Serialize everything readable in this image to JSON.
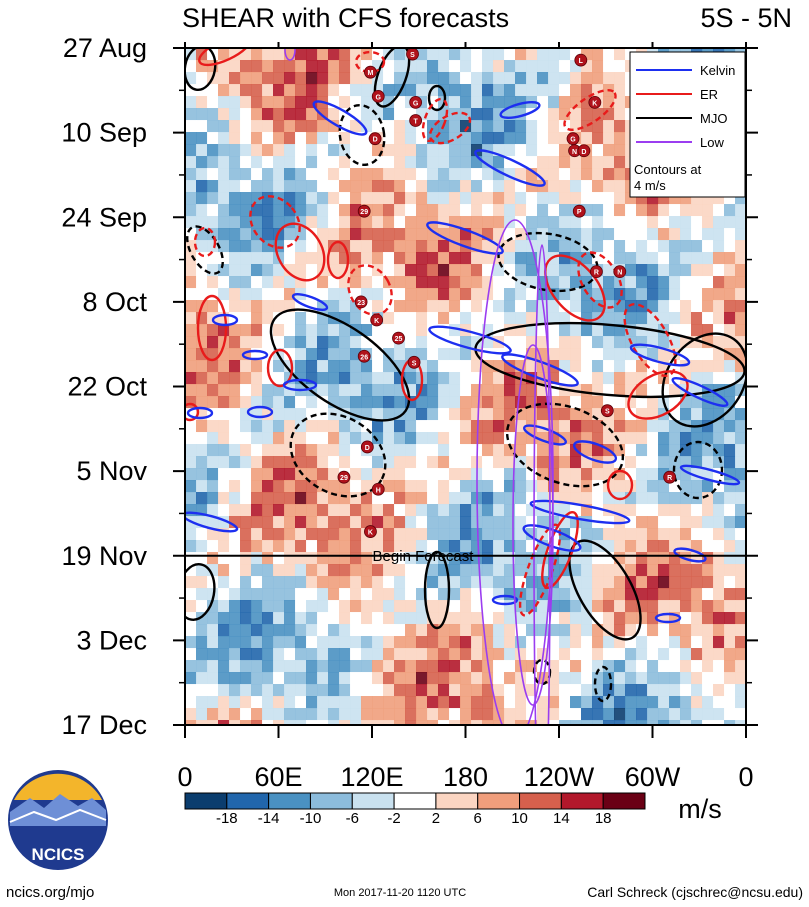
{
  "chart_data": {
    "type": "heatmap",
    "title": "SHEAR with CFS forecasts",
    "region": "5S - 5N",
    "x_ticks": [
      "0",
      "60E",
      "120E",
      "180",
      "120W",
      "60W",
      "0"
    ],
    "x_range": [
      0,
      360
    ],
    "y_ticks": [
      "27 Aug",
      "10 Sep",
      "24 Sep",
      "8 Oct",
      "22 Oct",
      "5 Nov",
      "19 Nov",
      "3 Dec",
      "17 Dec"
    ],
    "y_range_days": [
      0,
      112
    ],
    "forecast_start": "19 Nov",
    "forecast_label": "Begin Forecast",
    "colorbar": {
      "levels": [
        "-18",
        "-14",
        "-10",
        "-6",
        "-2",
        "2",
        "6",
        "10",
        "14",
        "18"
      ],
      "colors": [
        "#0b3d6e",
        "#2166ac",
        "#4a91c2",
        "#8cbcdc",
        "#c9e1ef",
        "#ffffff",
        "#fbd5c2",
        "#f09e7c",
        "#d6604d",
        "#b2182b",
        "#6a0015"
      ],
      "unit": "m/s"
    },
    "legend": [
      {
        "label": "Kelvin",
        "color": "#1d2ff0"
      },
      {
        "label": "ER",
        "color": "#e81b1b"
      },
      {
        "label": "MJO",
        "color": "#000000"
      },
      {
        "label": "Low",
        "color": "#9b3df0"
      }
    ],
    "legend_note": [
      "Contours at",
      "4 m/s"
    ],
    "storm_markers": [
      {
        "label": "G",
        "lon": 148,
        "day": 9
      },
      {
        "label": "M",
        "lon": 119,
        "day": 4
      },
      {
        "label": "S",
        "lon": 146,
        "day": 1
      },
      {
        "label": "G",
        "lon": 124,
        "day": 8
      },
      {
        "label": "T",
        "lon": 148,
        "day": 12
      },
      {
        "label": "D",
        "lon": 122,
        "day": 15
      },
      {
        "label": "L",
        "lon": 254,
        "day": 2
      },
      {
        "label": "K",
        "lon": 263,
        "day": 9
      },
      {
        "label": "G",
        "lon": 249,
        "day": 15
      },
      {
        "label": "N",
        "lon": 250,
        "day": 17
      },
      {
        "label": "D",
        "lon": 256,
        "day": 17
      },
      {
        "label": "P",
        "lon": 253,
        "day": 27
      },
      {
        "label": "29",
        "lon": 115,
        "day": 27
      },
      {
        "label": "R",
        "lon": 264,
        "day": 37
      },
      {
        "label": "N",
        "lon": 279,
        "day": 37
      },
      {
        "label": "23",
        "lon": 113,
        "day": 42
      },
      {
        "label": "K",
        "lon": 123,
        "day": 45
      },
      {
        "label": "25",
        "lon": 137,
        "day": 48
      },
      {
        "label": "26",
        "lon": 115,
        "day": 51
      },
      {
        "label": "S",
        "lon": 147,
        "day": 52
      },
      {
        "label": "S",
        "lon": 271,
        "day": 60
      },
      {
        "label": "D",
        "lon": 117,
        "day": 66
      },
      {
        "label": "29",
        "lon": 102,
        "day": 71
      },
      {
        "label": "H",
        "lon": 124,
        "day": 73
      },
      {
        "label": "R",
        "lon": 311,
        "day": 71
      },
      {
        "label": "K",
        "lon": 119,
        "day": 80
      }
    ]
  },
  "footer": {
    "logo_text": "NCICS",
    "url": "ncics.org/mjo",
    "timestamp": "Mon 2017-11-20 1120 UTC",
    "author": "Carl Schreck (cjschrec@ncsu.edu)"
  }
}
